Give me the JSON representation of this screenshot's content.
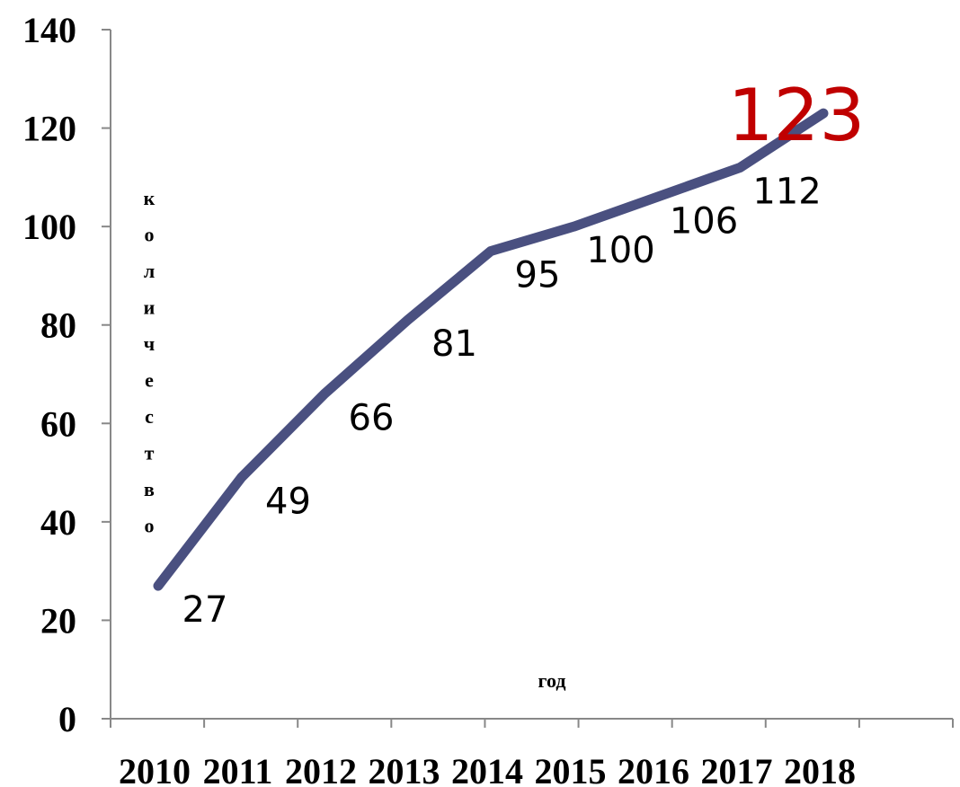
{
  "chart_data": {
    "type": "line",
    "categories": [
      "2010",
      "2011",
      "2012",
      "2013",
      "2014",
      "2015",
      "2016",
      "2017",
      "2018"
    ],
    "series": [
      {
        "values": [
          27,
          49,
          66,
          81,
          95,
          100,
          106,
          112,
          123
        ],
        "color": "#4a5080"
      }
    ],
    "data_labels": [
      "27",
      "49",
      "66",
      "81",
      "95",
      "100",
      "106",
      "112",
      "123"
    ],
    "highlight_label_color": "#c00000",
    "xlabel": "год",
    "ylabel": "количество",
    "ylim": [
      0,
      140
    ],
    "yticks": [
      0,
      20,
      40,
      60,
      80,
      100,
      120,
      140
    ],
    "ytick_labels": [
      "0",
      "20",
      "40",
      "60",
      "80",
      "100",
      "120",
      "140"
    ],
    "grid": false,
    "legend": "none"
  }
}
